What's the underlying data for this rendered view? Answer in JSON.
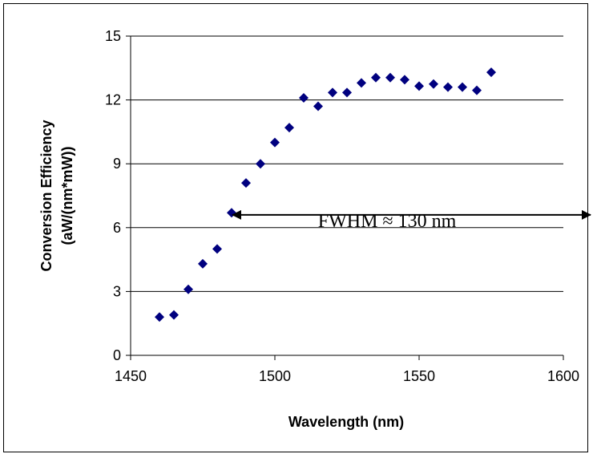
{
  "chart_data": {
    "type": "scatter",
    "title": "",
    "xlabel": "Wavelength (nm)",
    "ylabel": [
      "Conversion Efficiency",
      "(aW/(nm*mW))"
    ],
    "xlim": [
      1450,
      1600
    ],
    "ylim": [
      0,
      15
    ],
    "xticks": [
      1450,
      1500,
      1550,
      1600
    ],
    "yticks": [
      0,
      3,
      6,
      9,
      12,
      15
    ],
    "grid": "horizontal",
    "legend": "none",
    "marker_color": "#00007f",
    "series": [
      {
        "marker": "diamond",
        "x": [
          1460,
          1465,
          1470,
          1475,
          1480,
          1485,
          1490,
          1495,
          1500,
          1505,
          1510,
          1515,
          1520,
          1525,
          1530,
          1535,
          1540,
          1545,
          1550,
          1555,
          1560,
          1565,
          1570,
          1575
        ],
        "y": [
          1.8,
          1.9,
          3.1,
          4.3,
          5.0,
          6.7,
          8.1,
          9.0,
          10.0,
          10.7,
          12.1,
          11.7,
          12.35,
          12.35,
          12.8,
          13.05,
          13.05,
          12.95,
          12.65,
          12.75,
          12.6,
          12.6,
          12.45,
          13.3
        ]
      }
    ],
    "annotations": [
      {
        "text": "FWHM ≈ 130 nm",
        "type": "double-arrow",
        "x_start": 1485,
        "x_end": 1600,
        "y": 6.6
      }
    ]
  }
}
